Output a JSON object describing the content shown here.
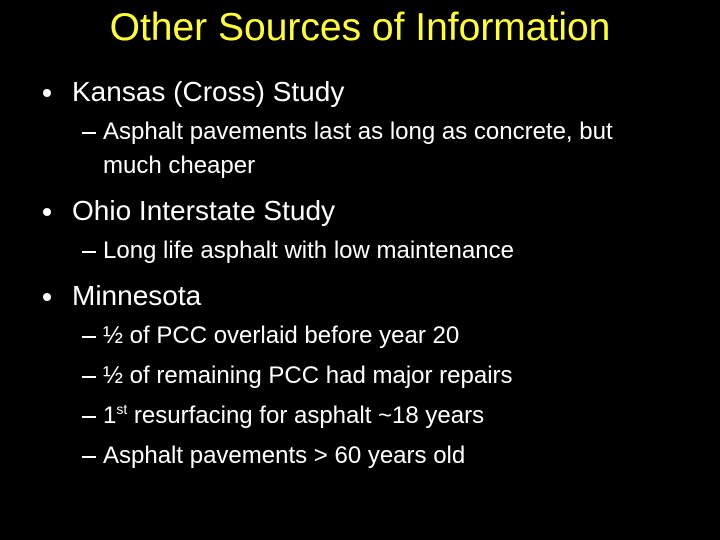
{
  "title": "Other Sources of Information",
  "bullets": [
    {
      "text": "Kansas (Cross) Study",
      "subitems": [
        {
          "text": "Asphalt pavements last as long as concrete, but much cheaper"
        }
      ]
    },
    {
      "text": "Ohio Interstate Study",
      "subitems": [
        {
          "text": "Long life asphalt with low maintenance"
        }
      ]
    },
    {
      "text": "Minnesota",
      "subitems": [
        {
          "text": "½ of PCC overlaid before year 20"
        },
        {
          "text": "½ of remaining PCC had major repairs"
        },
        {
          "text": "1",
          "superscript": "st",
          "after": " resurfacing for asphalt ~18 years"
        },
        {
          "text": "Asphalt pavements > 60 years old"
        }
      ]
    }
  ]
}
